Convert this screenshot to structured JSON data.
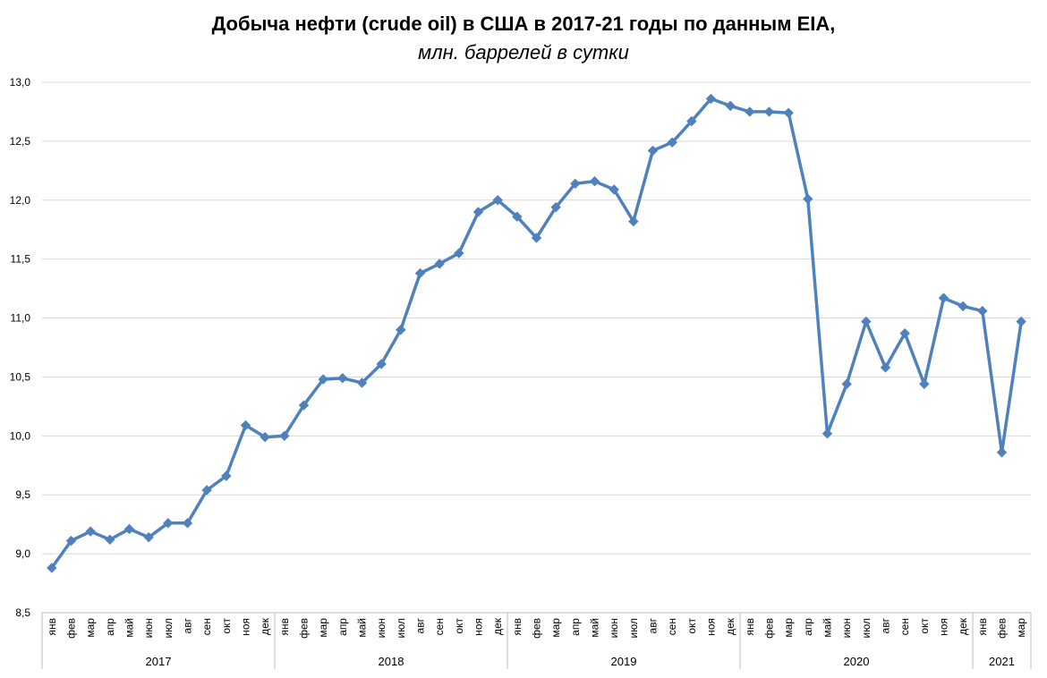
{
  "chart_data": {
    "type": "line",
    "title": "Добыча нефти (crude oil) в США в 2017-21 годы по данным EIA,",
    "subtitle": "млн. баррелей в сутки",
    "xlabel": "",
    "ylabel": "",
    "ylim": [
      8.5,
      13.0
    ],
    "ytick_step": 0.5,
    "ytick_labels": [
      "8,5",
      "9,0",
      "9,5",
      "10,0",
      "10,5",
      "11,0",
      "11,5",
      "12,0",
      "12,5",
      "13,0"
    ],
    "grid": true,
    "legend": "none",
    "line_color": "#4f81bd",
    "years": [
      {
        "label": "2017",
        "months": 12
      },
      {
        "label": "2018",
        "months": 12
      },
      {
        "label": "2019",
        "months": 12
      },
      {
        "label": "2020",
        "months": 12
      },
      {
        "label": "2021",
        "months": 3
      }
    ],
    "categories": [
      "янв",
      "фев",
      "мар",
      "апр",
      "май",
      "июн",
      "июл",
      "авг",
      "сен",
      "окт",
      "ноя",
      "дек",
      "янв",
      "фев",
      "мар",
      "апр",
      "май",
      "июн",
      "июл",
      "авг",
      "сен",
      "окт",
      "ноя",
      "дек",
      "янв",
      "фев",
      "мар",
      "апр",
      "май",
      "июн",
      "июл",
      "авг",
      "сен",
      "окт",
      "ноя",
      "дек",
      "янв",
      "фев",
      "мар",
      "апр",
      "май",
      "июн",
      "июл",
      "авг",
      "сен",
      "окт",
      "ноя",
      "дек",
      "янв",
      "фев",
      "мар"
    ],
    "series": [
      {
        "values": [
          8.88,
          9.11,
          9.19,
          9.12,
          9.21,
          9.14,
          9.26,
          9.26,
          9.54,
          9.66,
          10.09,
          9.99,
          10.0,
          10.26,
          10.48,
          10.49,
          10.45,
          10.61,
          10.9,
          11.38,
          11.46,
          11.55,
          11.9,
          12.0,
          11.86,
          11.68,
          11.94,
          12.14,
          12.16,
          12.09,
          11.82,
          12.42,
          12.49,
          12.67,
          12.86,
          12.8,
          12.75,
          12.75,
          12.74,
          12.01,
          10.02,
          10.44,
          10.97,
          10.58,
          10.87,
          10.44,
          11.17,
          11.1,
          11.06,
          9.86,
          10.97
        ]
      }
    ]
  }
}
